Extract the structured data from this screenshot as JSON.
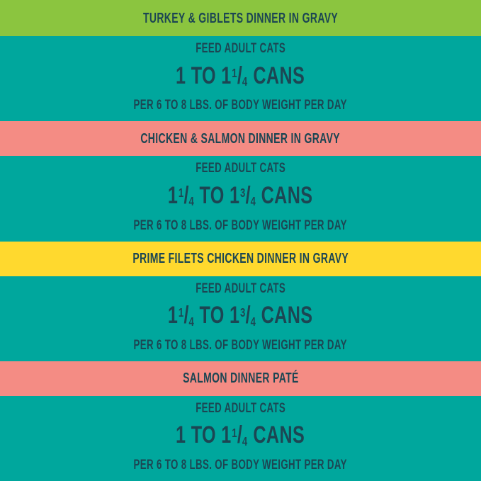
{
  "colors": {
    "teal_background": "#00A79D",
    "band_green": "#8BC53F",
    "band_coral": "#F48C84",
    "band_yellow": "#FFD92E",
    "text_navy": "#1C4653"
  },
  "products": [
    {
      "band_label": "TURKEY & GIBLETS DINNER IN GRAVY",
      "band_color": "#8BC53F",
      "feed_heading": "FEED ADULT CATS",
      "serving": {
        "pre": "1 TO 1",
        "num1": "1",
        "slash1": "/",
        "den1": "4",
        "mid": "",
        "num2": "",
        "slash2": "",
        "den2": "",
        "post": " CANS",
        "plain_text": "1 TO 1 1/4 CANS"
      },
      "per_line": "PER 6 TO 8 LBS. OF BODY WEIGHT PER DAY"
    },
    {
      "band_label": "CHICKEN & SALMON DINNER IN GRAVY",
      "band_color": "#F48C84",
      "feed_heading": "FEED ADULT CATS",
      "serving": {
        "pre": "1",
        "num1": "1",
        "slash1": "/",
        "den1": "4",
        "mid": " TO 1",
        "num2": "3",
        "slash2": "/",
        "den2": "4",
        "post": " CANS",
        "plain_text": "1 1/4 TO 1 3/4 CANS"
      },
      "per_line": "PER 6 TO 8 LBS. OF BODY WEIGHT PER DAY"
    },
    {
      "band_label": "PRIME FILETS CHICKEN DINNER IN GRAVY",
      "band_color": "#FFD92E",
      "feed_heading": "FEED ADULT CATS",
      "serving": {
        "pre": "1",
        "num1": "1",
        "slash1": "/",
        "den1": "4",
        "mid": " TO 1",
        "num2": "3",
        "slash2": "/",
        "den2": "4",
        "post": " CANS",
        "plain_text": "1 1/4 TO 1 3/4 CANS"
      },
      "per_line": "PER 6 TO 8 LBS. OF BODY WEIGHT PER DAY"
    },
    {
      "band_label": "SALMON DINNER PATÉ",
      "band_color": "#F48C84",
      "feed_heading": "FEED ADULT CATS",
      "serving": {
        "pre": "1 TO 1",
        "num1": "1",
        "slash1": "/",
        "den1": "4",
        "mid": "",
        "num2": "",
        "slash2": "",
        "den2": "",
        "post": " CANS",
        "plain_text": "1 TO 1 1/4 CANS"
      },
      "per_line": "PER 6 TO 8 LBS. OF BODY WEIGHT PER DAY"
    }
  ]
}
